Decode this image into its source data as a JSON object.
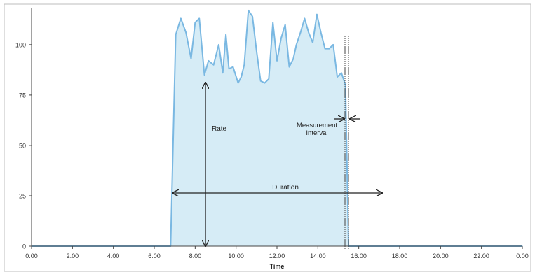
{
  "chart_data": {
    "type": "area",
    "xlabel": "Time",
    "ylabel": "",
    "x_tick_labels": [
      "0:00",
      "2:00",
      "4:00",
      "6:00",
      "8:00",
      "10:00",
      "12:00",
      "14:00",
      "16:00",
      "18:00",
      "20:00",
      "22:00",
      "0:00"
    ],
    "y_tick_labels": [
      "0",
      "25",
      "50",
      "75",
      "100"
    ],
    "y_ticks": [
      0,
      25,
      50,
      75,
      100
    ],
    "xlim": [
      0,
      24
    ],
    "ylim": [
      0,
      118
    ],
    "grid": false,
    "series": [
      {
        "x": [
          0,
          6.8,
          7.05,
          7.3,
          7.55,
          7.8,
          8.0,
          8.2,
          8.45,
          8.65,
          8.9,
          9.15,
          9.35,
          9.5,
          9.65,
          9.85,
          10.1,
          10.25,
          10.4,
          10.6,
          10.8,
          11.0,
          11.2,
          11.4,
          11.6,
          11.8,
          12.0,
          12.2,
          12.4,
          12.6,
          12.8,
          12.95,
          13.15,
          13.35,
          13.55,
          13.75,
          13.95,
          14.15,
          14.35,
          14.55,
          14.75,
          14.95,
          15.15,
          15.35,
          15.5,
          15.6,
          15.75,
          15.95,
          16.15,
          16.35,
          16.55,
          16.75,
          16.9,
          17.05,
          17.15,
          17.3,
          24
        ],
        "values": [
          0,
          0,
          105,
          113,
          106,
          93,
          111,
          113,
          85,
          92,
          90,
          100,
          86,
          105,
          88,
          89,
          81,
          84,
          90,
          117,
          114,
          97,
          82,
          81,
          83,
          111,
          92,
          103,
          110,
          89,
          93,
          100,
          106,
          113,
          106,
          101,
          115,
          106,
          98,
          98,
          100,
          84,
          86,
          80,
          0,
          0,
          0,
          0,
          0,
          0,
          0,
          0,
          0,
          0,
          0,
          0,
          0
        ]
      }
    ],
    "annotations": [
      {
        "text": "Rate"
      },
      {
        "text": "Measurement"
      },
      {
        "text": "Interval"
      },
      {
        "text": "Duration"
      }
    ],
    "colors": {
      "fill": "#d6ecf6",
      "line": "#7ab8e2",
      "axis": "#444444",
      "arrow": "#222222",
      "frame": "#bdbdbd"
    }
  }
}
